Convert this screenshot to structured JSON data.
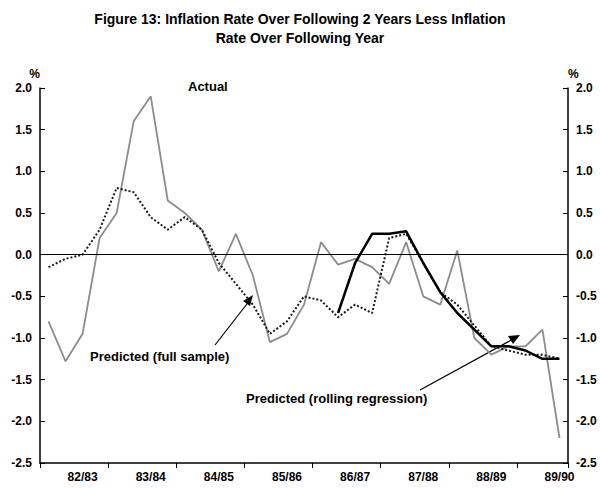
{
  "chart_data": {
    "type": "line",
    "title": "Figure 13: Inflation Rate Over Following 2 Years Less Inflation\nRate Over Following Year",
    "ylabel": "%",
    "y2label": "%",
    "categories": [
      null,
      null,
      "82/83",
      null,
      null,
      null,
      "83/84",
      null,
      null,
      null,
      "84/85",
      null,
      null,
      null,
      "85/86",
      null,
      null,
      null,
      "86/87",
      null,
      null,
      null,
      "87/88",
      null,
      null,
      null,
      "88/89",
      null,
      null,
      null,
      "89/90"
    ],
    "series": [
      {
        "name": "Actual",
        "color": "#8c8c8c",
        "line_style": "solid",
        "values": [
          -0.8,
          -1.28,
          -0.95,
          0.2,
          0.5,
          1.6,
          1.9,
          0.65,
          0.5,
          0.3,
          -0.2,
          0.25,
          -0.25,
          -1.05,
          -0.95,
          -0.6,
          0.15,
          -0.12,
          -0.05,
          -0.15,
          -0.35,
          0.15,
          -0.5,
          -0.6,
          0.05,
          -1.0,
          -1.2,
          -1.1,
          -1.1,
          -0.9,
          -2.2
        ]
      },
      {
        "name": "Predicted (full sample)",
        "color": "#1a1a1a",
        "line_style": "dotted",
        "values": [
          -0.15,
          -0.05,
          0.0,
          0.3,
          0.8,
          0.75,
          0.45,
          0.3,
          0.45,
          0.3,
          -0.1,
          -0.35,
          -0.6,
          -0.95,
          -0.8,
          -0.5,
          -0.55,
          -0.75,
          -0.6,
          -0.7,
          0.2,
          0.25,
          -0.1,
          -0.45,
          -0.6,
          -0.85,
          -1.1,
          -1.15,
          -1.2,
          -1.2,
          -1.25
        ]
      },
      {
        "name": "Predicted (rolling regression)",
        "color": "#000000",
        "line_style": "thick",
        "values": [
          null,
          null,
          null,
          null,
          null,
          null,
          null,
          null,
          null,
          null,
          null,
          null,
          null,
          null,
          null,
          null,
          null,
          -0.7,
          -0.1,
          0.25,
          0.25,
          0.28,
          -0.1,
          -0.45,
          -0.7,
          -0.9,
          -1.1,
          -1.1,
          -1.15,
          -1.25,
          -1.25
        ]
      }
    ],
    "annotations": [
      "Actual",
      "Predicted (full sample)",
      "Predicted (rolling regression)"
    ],
    "hlines": [
      0
    ],
    "ylim": [
      -2.5,
      2.0
    ],
    "yticks": [
      -2.5,
      {
        "value": -2,
        "label": "-2.0"
      },
      -1.5,
      {
        "value": -1,
        "label": "-1.0"
      },
      -0.5,
      {
        "value": 0,
        "label": "0.0"
      },
      0.5,
      {
        "value": 1,
        "label": "1.0"
      },
      1.5,
      {
        "value": 2,
        "label": "2.0"
      }
    ],
    "y2lim": [
      -2.5,
      2.0
    ],
    "y2ticks": [
      -2.5,
      {
        "value": -2,
        "label": "-2.0"
      },
      -1.5,
      {
        "value": -1,
        "label": "-1.0"
      },
      -0.5,
      {
        "value": 0,
        "label": "0.0"
      },
      0.5,
      {
        "value": 1,
        "label": "1.0"
      },
      1.5,
      {
        "value": 2,
        "label": "2.0"
      }
    ],
    "grid": false,
    "legend": false
  }
}
